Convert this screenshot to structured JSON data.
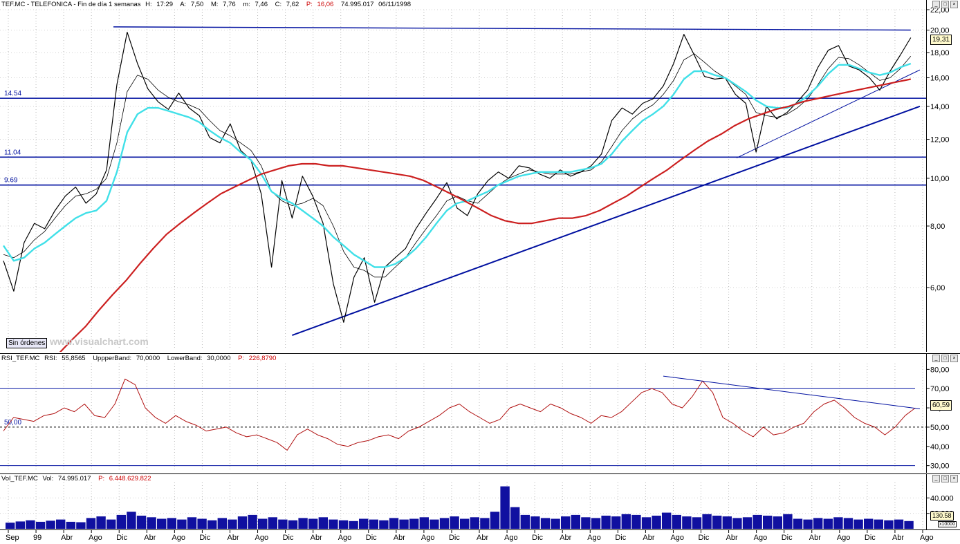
{
  "main_header": {
    "symbol": "TEF.MC - TELEFONICA - Fin de día 1 semanas",
    "h_label": "H:",
    "h": "17:29",
    "a_label": "A:",
    "a": "7,50",
    "m_label": "M:",
    "m": "7,76",
    "mn_label": "m:",
    "mn": "7,46",
    "c_label": "C:",
    "c": "7,62",
    "p_label": "P:",
    "p": "16,06",
    "vol": "74.995.017",
    "date": "06/11/1998"
  },
  "rsi_header": {
    "name": "RSI_TEF.MC",
    "rsi_label": "RSI:",
    "rsi": "55,8565",
    "upper_label": "UppperBand:",
    "upper": "70,0000",
    "lower_label": "LowerBand:",
    "lower": "30,0000",
    "p_label": "P:",
    "p": "226,8790"
  },
  "vol_header": {
    "name": "Vol_TEF.MC",
    "vol_label": "Vol:",
    "vol": "74.995.017",
    "p_label": "P:",
    "p": "6.448.629.822"
  },
  "controls": {
    "sin_ordenes": "Sin órdenes",
    "watermark": "www.visualchart.com",
    "min_btn": "_",
    "max_btn": "□",
    "close_btn": "×"
  },
  "last_values": {
    "price": "19,31",
    "rsi": "60,59",
    "vol": "130.58",
    "vol_mult": "x10000"
  },
  "colors": {
    "price": "#000000",
    "ma_short": "#000000",
    "ma_mid": "#40e0e8",
    "ma_long": "#cc2020",
    "lines": "#0010a0",
    "rsi": "#b01010",
    "volume": "#1010a0"
  },
  "chart_data": [
    {
      "type": "line",
      "title": "TEF.MC - TELEFONICA",
      "x_ticks": [
        "Sep",
        "99",
        "Abr",
        "Ago",
        "Dic",
        "Abr",
        "Ago",
        "Dic",
        "Abr",
        "Ago",
        "Dic",
        "Abr",
        "Ago",
        "Dic",
        "Abr",
        "Ago",
        "Dic",
        "Abr",
        "Ago",
        "Dic",
        "Abr",
        "Ago",
        "Dic",
        "Abr",
        "Ago",
        "Dic",
        "Abr",
        "Ago",
        "Dic",
        "Abr",
        "Ago",
        "Dic",
        "Abr",
        "Ago"
      ],
      "y_ticks": [
        "6,00",
        "8,00",
        "10,00",
        "12,00",
        "14,00",
        "16,00",
        "18,00",
        "20,00",
        "22,00"
      ],
      "y_scale": "log",
      "ylim": [
        4.5,
        22
      ],
      "horizontal_lines": [
        {
          "label": "14.54",
          "value": 14.54
        },
        {
          "label": "11.04",
          "value": 11.04
        },
        {
          "label": "9.69",
          "value": 9.69
        }
      ],
      "series": [
        {
          "values": [
            6.8,
            5.9,
            7.4,
            8.1,
            7.9,
            8.6,
            9.2,
            9.6,
            8.9,
            9.3,
            10.4,
            15.5,
            19.8,
            17.1,
            15.2,
            14.3,
            13.8,
            14.9,
            13.9,
            13.4,
            12.1,
            11.8,
            12.9,
            11.4,
            10.9,
            9.3,
            6.6,
            9.9,
            8.3,
            10.1,
            9.2,
            8.1,
            6.1,
            5.1,
            6.3,
            6.9,
            5.6,
            6.6,
            6.9,
            7.2,
            7.9,
            8.5,
            9.1,
            9.8,
            8.7,
            8.4,
            9.3,
            9.9,
            10.3,
            10.0,
            10.6,
            10.5,
            10.2,
            10.0,
            10.4,
            10.1,
            10.3,
            10.6,
            11.2,
            13.1,
            13.9,
            13.5,
            14.2,
            14.5,
            15.4,
            17.1,
            19.6,
            17.8,
            16.1,
            15.9,
            16.0,
            14.8,
            14.2,
            11.3,
            14.0,
            13.2,
            13.6,
            14.3,
            15.1,
            16.8,
            18.2,
            18.6,
            16.9,
            16.6,
            16.0,
            15.1,
            16.5,
            17.8,
            19.3
          ]
        },
        {
          "values": [
            7.0,
            6.9,
            7.1,
            7.5,
            7.8,
            8.3,
            8.8,
            9.2,
            9.3,
            9.5,
            10.0,
            11.8,
            15.0,
            16.2,
            15.9,
            15.1,
            14.6,
            14.3,
            14.1,
            13.8,
            13.1,
            12.5,
            12.2,
            11.8,
            11.4,
            10.6,
            9.4,
            9.0,
            8.8,
            8.9,
            9.1,
            8.8,
            8.0,
            7.1,
            6.6,
            6.5,
            6.3,
            6.3,
            6.6,
            6.9,
            7.4,
            7.9,
            8.4,
            9.0,
            9.2,
            9.0,
            8.9,
            9.3,
            9.7,
            10.0,
            10.2,
            10.4,
            10.3,
            10.2,
            10.2,
            10.2,
            10.3,
            10.4,
            10.8,
            11.6,
            12.5,
            13.2,
            13.7,
            14.1,
            14.8,
            15.8,
            17.4,
            17.9,
            17.2,
            16.5,
            16.0,
            15.4,
            14.8,
            13.6,
            13.4,
            13.3,
            13.5,
            13.9,
            14.5,
            15.5,
            16.7,
            17.6,
            17.5,
            17.0,
            16.4,
            15.8,
            16.0,
            16.7,
            17.7
          ]
        },
        {
          "values": [
            7.3,
            6.8,
            6.9,
            7.2,
            7.4,
            7.7,
            8.0,
            8.3,
            8.5,
            8.6,
            9.0,
            10.3,
            12.4,
            13.5,
            13.9,
            13.9,
            13.7,
            13.5,
            13.3,
            13.0,
            12.5,
            12.1,
            11.8,
            11.3,
            10.9,
            10.2,
            9.4,
            9.1,
            8.9,
            8.6,
            8.3,
            8.0,
            7.6,
            7.3,
            7.0,
            6.8,
            6.6,
            6.6,
            6.7,
            6.9,
            7.2,
            7.6,
            8.1,
            8.6,
            8.9,
            9.0,
            9.2,
            9.4,
            9.7,
            9.9,
            10.1,
            10.2,
            10.3,
            10.3,
            10.3,
            10.3,
            10.4,
            10.5,
            10.7,
            11.2,
            11.9,
            12.5,
            13.1,
            13.5,
            14.0,
            14.8,
            15.9,
            16.5,
            16.5,
            16.2,
            16.0,
            15.5,
            15.0,
            14.4,
            14.0,
            13.9,
            13.9,
            14.2,
            14.7,
            15.4,
            16.3,
            17.0,
            17.0,
            16.7,
            16.4,
            16.2,
            16.4,
            16.8,
            17.1
          ]
        },
        {
          "values": [
            4.4,
            4.7,
            5.0,
            5.4,
            5.8,
            6.2,
            6.7,
            7.2,
            7.7,
            8.1,
            8.5,
            8.9,
            9.3,
            9.6,
            9.9,
            10.2,
            10.4,
            10.6,
            10.7,
            10.7,
            10.6,
            10.6,
            10.5,
            10.4,
            10.3,
            10.2,
            10.1,
            9.9,
            9.6,
            9.3,
            9.0,
            8.7,
            8.4,
            8.2,
            8.1,
            8.1,
            8.2,
            8.3,
            8.3,
            8.4,
            8.6,
            8.9,
            9.2,
            9.6,
            10.0,
            10.4,
            10.9,
            11.4,
            11.9,
            12.3,
            12.8,
            13.2,
            13.5,
            13.8,
            14.0,
            14.3,
            14.5,
            14.7,
            14.9,
            15.1,
            15.3,
            15.5,
            15.7,
            15.9
          ]
        }
      ],
      "trendlines": [
        {
          "from": [
            0.315,
            4.8
          ],
          "to": [
            1.0,
            14.0
          ]
        },
        {
          "from": [
            0.8,
            11.0
          ],
          "to": [
            1.0,
            16.6
          ]
        },
        {
          "from": [
            0.12,
            20.3
          ],
          "to": [
            0.99,
            20.0
          ]
        }
      ]
    },
    {
      "type": "line",
      "title": "RSI_TEF.MC",
      "y_ticks": [
        "30,00",
        "40,00",
        "50,00",
        "60,00",
        "70,00",
        "80,00"
      ],
      "ylim": [
        27,
        83
      ],
      "reference_lines": [
        70,
        30
      ],
      "dashed_line": {
        "label": "50,00",
        "value": 50
      },
      "values": [
        48,
        55,
        54,
        53,
        56,
        57,
        60,
        58,
        62,
        56,
        55,
        62,
        75,
        72,
        60,
        55,
        52,
        56,
        53,
        51,
        48,
        49,
        50,
        47,
        45,
        46,
        44,
        42,
        38,
        46,
        49,
        46,
        44,
        41,
        40,
        42,
        43,
        45,
        46,
        44,
        48,
        50,
        53,
        56,
        60,
        62,
        58,
        55,
        52,
        54,
        60,
        62,
        60,
        58,
        62,
        60,
        57,
        55,
        52,
        56,
        55,
        58,
        63,
        68,
        70,
        68,
        62,
        60,
        66,
        74,
        68,
        55,
        52,
        48,
        45,
        50,
        46,
        47,
        50,
        52,
        58,
        62,
        64,
        60,
        55,
        52,
        50,
        46,
        50,
        56,
        60
      ],
      "trendline": {
        "from": [
          0.72,
          76.5
        ],
        "to": [
          1.0,
          59.5
        ]
      }
    },
    {
      "type": "bar",
      "title": "Vol_TEF.MC",
      "y_ticks": [
        "20.000",
        "40.000"
      ],
      "ylim": [
        0,
        60000
      ],
      "values": [
        8000,
        9500,
        11000,
        9000,
        10500,
        12000,
        9000,
        8500,
        14000,
        16000,
        12000,
        18000,
        22000,
        17000,
        15000,
        13000,
        14000,
        12000,
        15000,
        13000,
        11000,
        14000,
        12000,
        16000,
        18000,
        13000,
        15000,
        12000,
        11000,
        14000,
        13000,
        15000,
        12000,
        11000,
        10000,
        13000,
        12000,
        11000,
        14000,
        12000,
        13000,
        15000,
        12000,
        14000,
        16000,
        13000,
        15000,
        14000,
        22000,
        55000,
        28000,
        18000,
        16000,
        14000,
        13000,
        16000,
        18000,
        15000,
        14000,
        17000,
        16000,
        19000,
        18000,
        15000,
        17000,
        21000,
        18000,
        16000,
        15000,
        19000,
        17000,
        16000,
        14000,
        15000,
        18000,
        17000,
        16000,
        19000,
        13000,
        12000,
        14000,
        13000,
        15000,
        14000,
        12000,
        13000,
        12000,
        11000,
        12000,
        10000
      ]
    }
  ]
}
